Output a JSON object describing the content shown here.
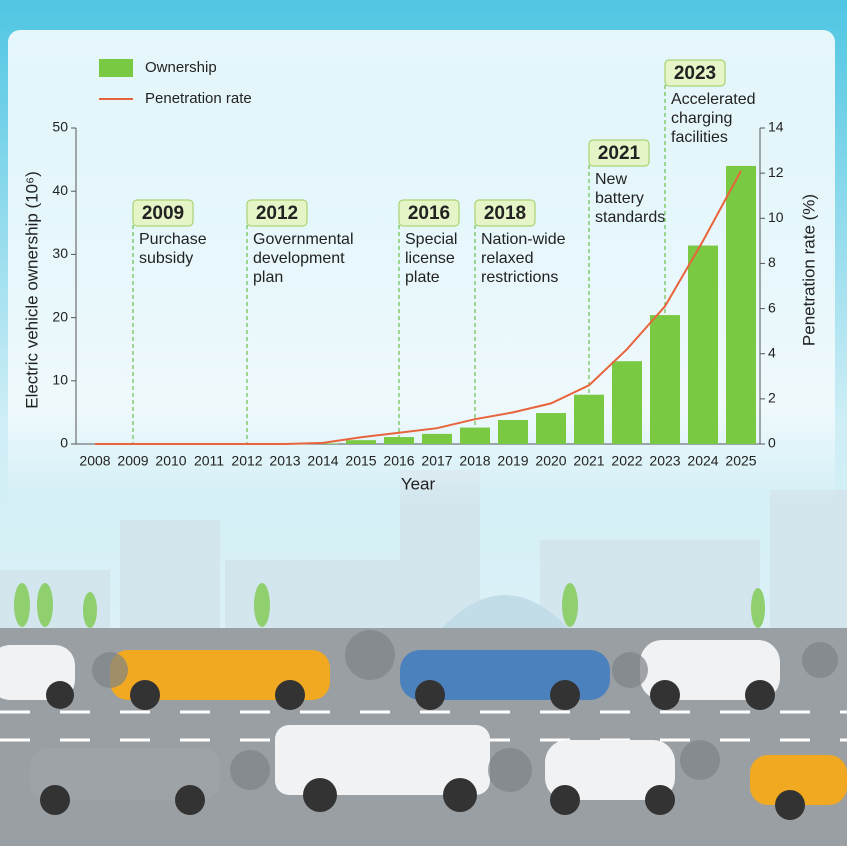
{
  "chart_data": {
    "type": "bar",
    "x_label": "Year",
    "y_label": "Electric vehicle ownership (10⁶)",
    "y2_label": "Penetration rate (%)",
    "categories": [
      "2008",
      "2009",
      "2010",
      "2011",
      "2012",
      "2013",
      "2014",
      "2015",
      "2016",
      "2017",
      "2018",
      "2019",
      "2020",
      "2021",
      "2022",
      "2023",
      "2024",
      "2025"
    ],
    "series": [
      {
        "name": "Ownership",
        "type": "bar",
        "color": "#7ac943",
        "values": [
          0,
          0,
          0,
          0,
          0,
          0,
          0.1,
          0.6,
          1.1,
          1.6,
          2.6,
          3.8,
          4.9,
          7.8,
          13.1,
          20.4,
          31.4,
          44.0
        ]
      },
      {
        "name": "Penetration rate",
        "type": "line",
        "axis": "y2",
        "color": "#e8643c",
        "values": [
          0,
          0,
          0,
          0,
          0,
          0,
          0.05,
          0.3,
          0.5,
          0.7,
          1.1,
          1.4,
          1.8,
          2.6,
          4.2,
          6.1,
          9.0,
          12.1
        ]
      }
    ],
    "ylim": [
      0,
      50
    ],
    "yticks": [
      0,
      10,
      20,
      30,
      40,
      50
    ],
    "y2lim": [
      0,
      14
    ],
    "y2ticks": [
      0,
      2,
      4,
      6,
      8,
      10,
      12,
      14
    ],
    "legend": "top-left",
    "annotations": [
      {
        "label": "2009",
        "text": [
          "Purchase",
          "subsidy"
        ]
      },
      {
        "label": "2012",
        "text": [
          "Governmental",
          "development",
          "plan"
        ]
      },
      {
        "label": "2016",
        "text": [
          "Special",
          "license",
          "plate"
        ]
      },
      {
        "label": "2018",
        "text": [
          "Nation-wide",
          "relaxed",
          "restrictions"
        ]
      },
      {
        "label": "2021",
        "text": [
          "New",
          "battery",
          "standards"
        ]
      },
      {
        "label": "2023",
        "text": [
          "Accelerated",
          "charging",
          "facilities"
        ]
      }
    ]
  }
}
